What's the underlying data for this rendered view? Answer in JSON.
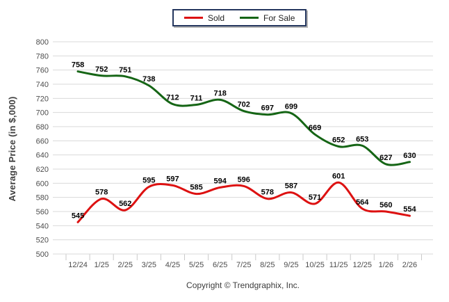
{
  "legend": {
    "items": [
      {
        "label": "Sold",
        "color": "#dd1111"
      },
      {
        "label": "For Sale",
        "color": "#156515"
      }
    ]
  },
  "footer": {
    "copyright": "Copyright © Trendgraphix, Inc."
  },
  "colors": {
    "gridline": "#d9d9d9",
    "axis_tick": "#c9c9c9",
    "axis_text": "#4d4d4d",
    "data_label": "#000000"
  },
  "chart_data": {
    "type": "line",
    "title": "",
    "xlabel": "",
    "ylabel": "Average Price (in $,000)",
    "categories": [
      "12/24",
      "1/25",
      "2/25",
      "3/25",
      "4/25",
      "5/25",
      "6/25",
      "7/25",
      "8/25",
      "9/25",
      "10/25",
      "11/25",
      "12/25",
      "1/26",
      "2/26"
    ],
    "series": [
      {
        "name": "Sold",
        "color": "#dd1111",
        "values": [
          545,
          578,
          562,
          595,
          597,
          585,
          594,
          596,
          578,
          587,
          571,
          601,
          564,
          560,
          554
        ]
      },
      {
        "name": "For Sale",
        "color": "#156515",
        "values": [
          758,
          752,
          751,
          738,
          712,
          711,
          718,
          702,
          697,
          699,
          669,
          652,
          653,
          627,
          630
        ]
      }
    ],
    "ylim": [
      500,
      800
    ],
    "ytick_step": 20,
    "grid": true,
    "smooth_lines": true,
    "data_labels": true,
    "legend_position": "top-center"
  }
}
